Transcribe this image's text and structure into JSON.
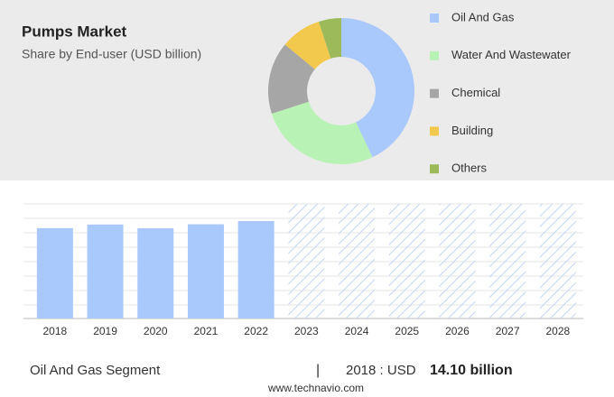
{
  "chart_data": [
    {
      "type": "donut",
      "title": "Pumps Market",
      "subtitle": "Share by End-user (USD billion)",
      "categories": [
        "Oil And Gas",
        "Water And Wastewater",
        "Chemical",
        "Building",
        "Others"
      ],
      "values": [
        43,
        27,
        16,
        9,
        5
      ],
      "colors": [
        "#a9c8fb",
        "#b8f2b4",
        "#a6a6a6",
        "#f2c94c",
        "#9dba5a"
      ]
    },
    {
      "type": "bar",
      "categories": [
        "2018",
        "2019",
        "2020",
        "2021",
        "2022",
        "2023",
        "2024",
        "2025",
        "2026",
        "2027",
        "2028"
      ],
      "values": [
        14.1,
        14.66,
        14.08,
        14.7,
        15.2,
        null,
        null,
        null,
        null,
        null,
        null
      ],
      "color": "#a9c8fb"
    }
  ],
  "footer": {
    "segment": "Oil And Gas Segment",
    "separator": "|",
    "year_unit": "2018 : USD",
    "value": "14.10 billion",
    "source": "www.technavio.com"
  }
}
